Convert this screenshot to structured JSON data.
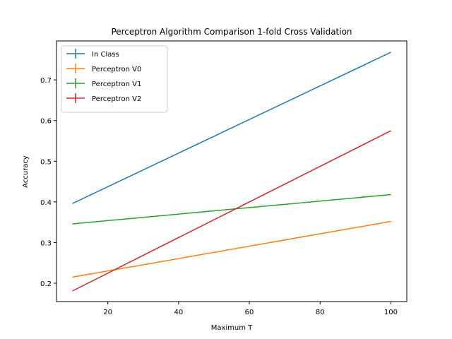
{
  "chart_data": {
    "type": "line",
    "title": "Perceptron Algorithm Comparison 1-fold Cross Validation",
    "xlabel": "Maximum T",
    "ylabel": "Accuracy",
    "xlim": [
      5.5,
      104.5
    ],
    "ylim": [
      0.1549,
      0.7957
    ],
    "xticks": [
      20,
      40,
      60,
      80,
      100
    ],
    "yticks": [
      0.2,
      0.3,
      0.4,
      0.5,
      0.6,
      0.7
    ],
    "grid": false,
    "legend_position": "upper-left",
    "series": [
      {
        "name": "In Class",
        "color": "#1f77b4",
        "x": [
          10,
          100
        ],
        "y": [
          0.396,
          0.768
        ]
      },
      {
        "name": "Perceptron V0",
        "color": "#ff7f0e",
        "x": [
          10,
          100
        ],
        "y": [
          0.215,
          0.352
        ]
      },
      {
        "name": "Perceptron V1",
        "color": "#2ca02c",
        "x": [
          10,
          100
        ],
        "y": [
          0.346,
          0.418
        ]
      },
      {
        "name": "Perceptron V2",
        "color": "#d62728",
        "x": [
          10,
          100
        ],
        "y": [
          0.181,
          0.575
        ]
      }
    ]
  }
}
